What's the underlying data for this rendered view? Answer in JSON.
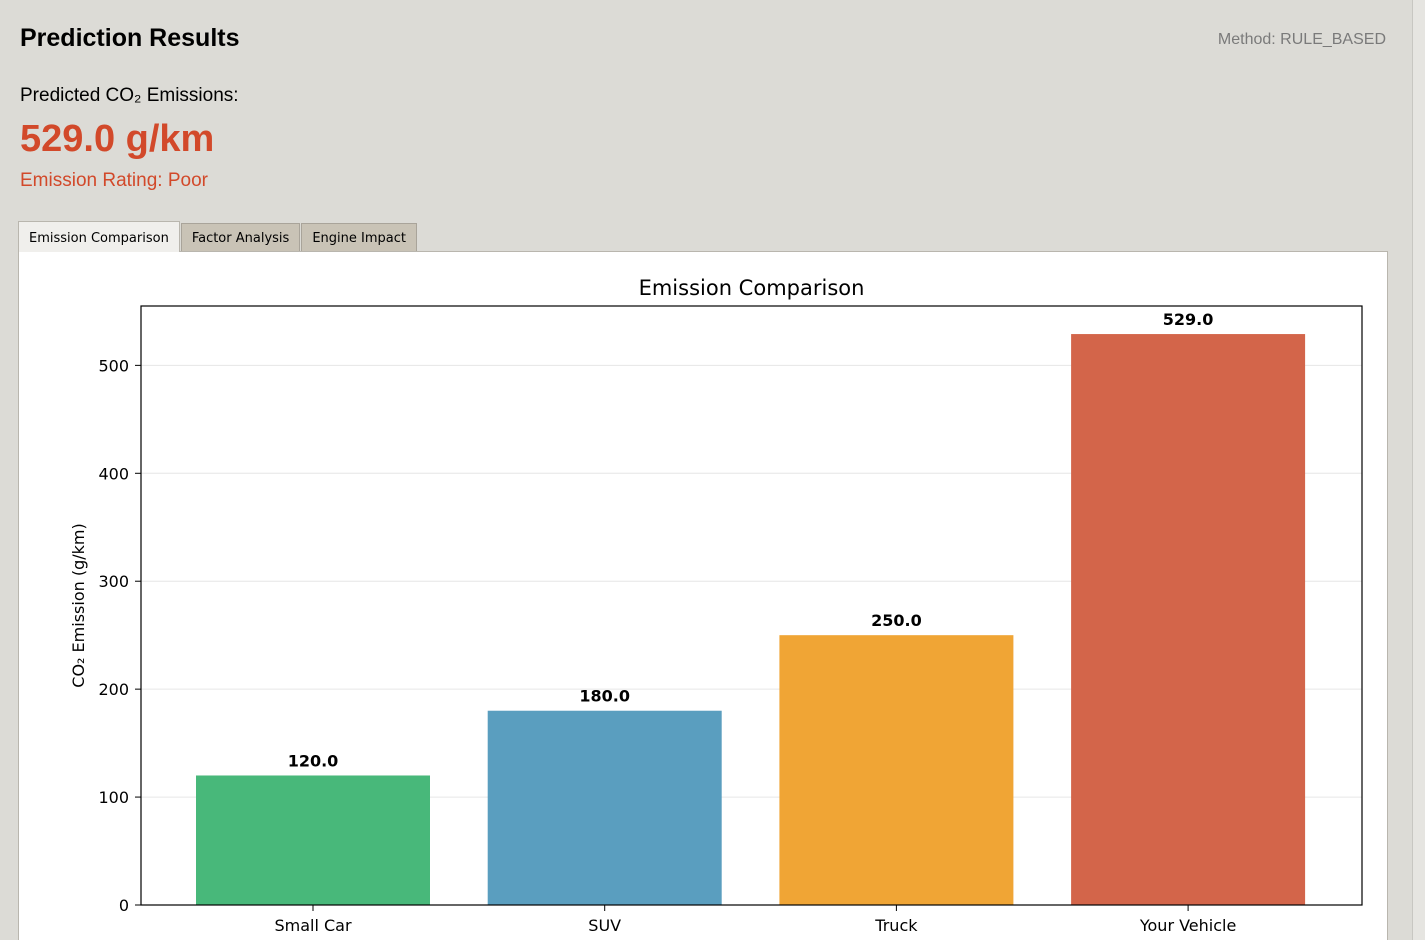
{
  "header": {
    "title": "Prediction Results",
    "method": "Method: RULE_BASED"
  },
  "prediction": {
    "label": "Predicted CO₂ Emissions:",
    "value": "529.0 g/km",
    "rating": "Emission Rating: Poor"
  },
  "tabs": [
    {
      "label": "Emission Comparison",
      "active": true
    },
    {
      "label": "Factor Analysis",
      "active": false
    },
    {
      "label": "Engine Impact",
      "active": false
    }
  ],
  "colors": {
    "accent": "#d2492a",
    "bars": [
      "#48b87a",
      "#5a9ebf",
      "#f0a535",
      "#d3654a"
    ]
  },
  "chart_data": {
    "type": "bar",
    "title": "Emission Comparison",
    "xlabel": "",
    "ylabel": "CO₂ Emission (g/km)",
    "categories": [
      "Small Car",
      "SUV",
      "Truck",
      "Your Vehicle"
    ],
    "values": [
      120.0,
      180.0,
      250.0,
      529.0
    ],
    "value_labels": [
      "120.0",
      "180.0",
      "250.0",
      "529.0"
    ],
    "yticks": [
      0,
      100,
      200,
      300,
      400,
      500
    ],
    "ylim": [
      0,
      555
    ],
    "grid": true,
    "legend": "none"
  }
}
